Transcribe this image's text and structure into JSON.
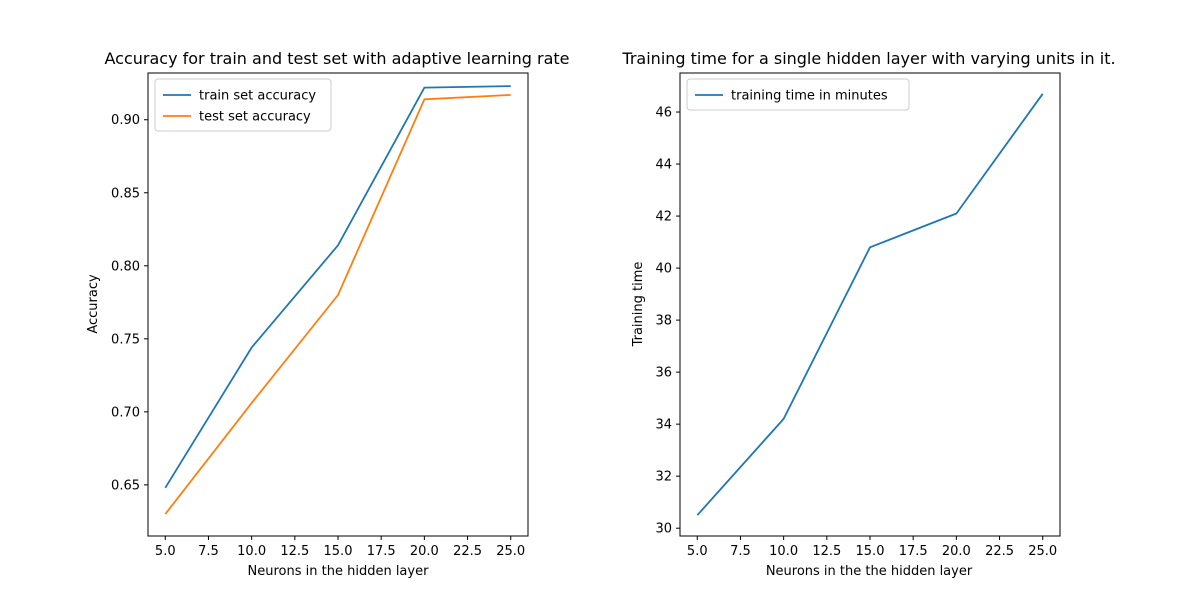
{
  "chart_data": [
    {
      "type": "line",
      "title": "Accuracy for train and test set with adaptive learning rate",
      "xlabel": "Neurons in the hidden layer",
      "ylabel": "Accuracy",
      "x": [
        5,
        10,
        15,
        20,
        25
      ],
      "series": [
        {
          "name": "train set accuracy",
          "values": [
            0.648,
            0.744,
            0.814,
            0.922,
            0.923
          ],
          "color": "#1f77b4"
        },
        {
          "name": "test set accuracy",
          "values": [
            0.63,
            0.706,
            0.78,
            0.914,
            0.917
          ],
          "color": "#ff7f0e"
        }
      ],
      "xlim": [
        4,
        26
      ],
      "ylim": [
        0.615,
        0.932
      ],
      "xticks": [
        5,
        7.5,
        10,
        12.5,
        15,
        17.5,
        20,
        22.5,
        25
      ],
      "xtick_labels": [
        "5.0",
        "7.5",
        "10.0",
        "12.5",
        "15.0",
        "17.5",
        "20.0",
        "22.5",
        "25.0"
      ],
      "yticks": [
        0.65,
        0.7,
        0.75,
        0.8,
        0.85,
        0.9
      ],
      "ytick_labels": [
        "0.65",
        "0.70",
        "0.75",
        "0.80",
        "0.85",
        "0.90"
      ],
      "grid": false,
      "legend_position": "upper left"
    },
    {
      "type": "line",
      "title": "Training time for a single hidden layer with varying units in it.",
      "xlabel": "Neurons in the the hidden layer",
      "ylabel": "Training time",
      "x": [
        5,
        10,
        15,
        20,
        25
      ],
      "series": [
        {
          "name": "training time in minutes",
          "values": [
            30.5,
            34.2,
            40.8,
            42.1,
            46.7
          ],
          "color": "#1f77b4"
        }
      ],
      "xlim": [
        4,
        26
      ],
      "ylim": [
        29.7,
        47.5
      ],
      "xticks": [
        5,
        7.5,
        10,
        12.5,
        15,
        17.5,
        20,
        22.5,
        25
      ],
      "xtick_labels": [
        "5.0",
        "7.5",
        "10.0",
        "12.5",
        "15.0",
        "17.5",
        "20.0",
        "22.5",
        "25.0"
      ],
      "yticks": [
        30,
        32,
        34,
        36,
        38,
        40,
        42,
        44,
        46
      ],
      "ytick_labels": [
        "30",
        "32",
        "34",
        "36",
        "38",
        "40",
        "42",
        "44",
        "46"
      ],
      "grid": false,
      "legend_position": "upper left"
    }
  ]
}
